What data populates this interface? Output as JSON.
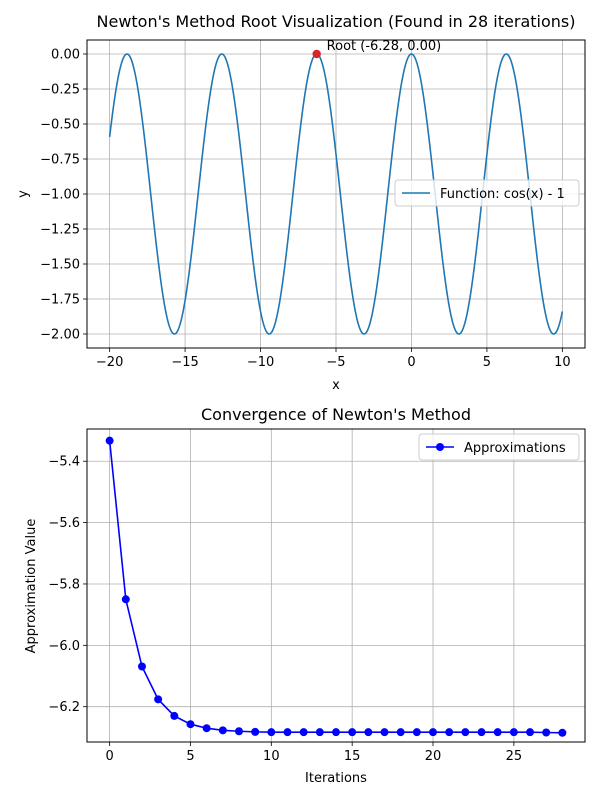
{
  "chart_data": [
    {
      "type": "line",
      "title": "Newton's Method Root Visualization (Found in 28 iterations)",
      "xlabel": "x",
      "ylabel": "y",
      "xlim": [
        -21.5,
        11.5
      ],
      "ylim": [
        -2.1,
        0.1
      ],
      "xticks": [
        -20,
        -15,
        -10,
        -5,
        0,
        5,
        10
      ],
      "xtick_labels": [
        "−20",
        "−15",
        "−10",
        "−5",
        "0",
        "5",
        "10"
      ],
      "yticks": [
        0.0,
        -0.25,
        -0.5,
        -0.75,
        -1.0,
        -1.25,
        -1.5,
        -1.75,
        -2.0
      ],
      "ytick_labels": [
        "0.00",
        "−0.25",
        "−0.50",
        "−0.75",
        "−1.00",
        "−1.25",
        "−1.50",
        "−1.75",
        "−2.00"
      ],
      "grid": true,
      "legend_position": "center-right",
      "series": [
        {
          "name": "Function: cos(x) - 1",
          "function": "cos(x) - 1",
          "x_range": [
            -20,
            10
          ],
          "color": "#1f77b4"
        }
      ],
      "marker": {
        "x": -6.28,
        "y": 0.0,
        "color": "#d62728",
        "label": "Root (-6.28, 0.00)"
      }
    },
    {
      "type": "line",
      "title": "Convergence of Newton's Method",
      "xlabel": "Iterations",
      "ylabel": "Approximation Value",
      "xlim": [
        -1.4,
        29.4
      ],
      "ylim": [
        -6.315,
        -5.295
      ],
      "xticks": [
        0,
        5,
        10,
        15,
        20,
        25
      ],
      "xtick_labels": [
        "0",
        "5",
        "10",
        "15",
        "20",
        "25"
      ],
      "yticks": [
        -5.4,
        -5.6,
        -5.8,
        -6.0,
        -6.2
      ],
      "ytick_labels": [
        "−5.4",
        "−5.6",
        "−5.8",
        "−6.0",
        "−6.2"
      ],
      "grid": true,
      "legend_position": "top-right",
      "series": [
        {
          "name": "Approximations",
          "color": "#0000ff",
          "x": [
            0,
            1,
            2,
            3,
            4,
            5,
            6,
            7,
            8,
            9,
            10,
            11,
            12,
            13,
            14,
            15,
            16,
            17,
            18,
            19,
            20,
            21,
            22,
            23,
            24,
            25,
            26,
            27,
            28
          ],
          "y": [
            -5.333,
            -5.85,
            -6.069,
            -6.176,
            -6.23,
            -6.257,
            -6.27,
            -6.277,
            -6.28,
            -6.282,
            -6.283,
            -6.283,
            -6.283,
            -6.283,
            -6.283,
            -6.283,
            -6.283,
            -6.283,
            -6.283,
            -6.283,
            -6.283,
            -6.283,
            -6.283,
            -6.283,
            -6.283,
            -6.283,
            -6.283,
            -6.284,
            -6.285
          ]
        }
      ]
    }
  ]
}
